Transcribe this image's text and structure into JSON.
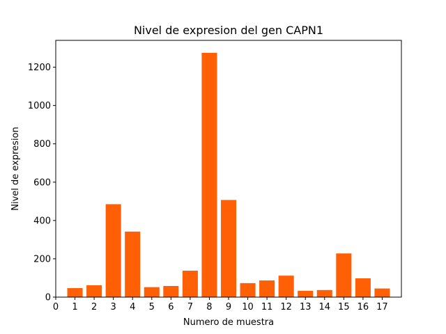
{
  "chart_data": {
    "type": "bar",
    "title": "Nivel de expresion del gen CAPN1",
    "xlabel": "Numero de muestra",
    "ylabel": "Nivel de expresion",
    "x": [
      1,
      2,
      3,
      4,
      5,
      6,
      7,
      8,
      9,
      10,
      11,
      12,
      13,
      14,
      15,
      16,
      17
    ],
    "values": [
      47,
      62,
      485,
      342,
      52,
      58,
      138,
      1275,
      507,
      73,
      87,
      112,
      33,
      37,
      228,
      98,
      45
    ],
    "xticks": [
      0,
      1,
      2,
      3,
      4,
      5,
      6,
      7,
      8,
      9,
      10,
      11,
      12,
      13,
      14,
      15,
      16,
      17
    ],
    "yticks": [
      0,
      200,
      400,
      600,
      800,
      1000,
      1200
    ],
    "xlim": [
      0,
      18
    ],
    "ylim": [
      0,
      1340
    ],
    "bar_color": "#ff5f05",
    "grid": false
  }
}
